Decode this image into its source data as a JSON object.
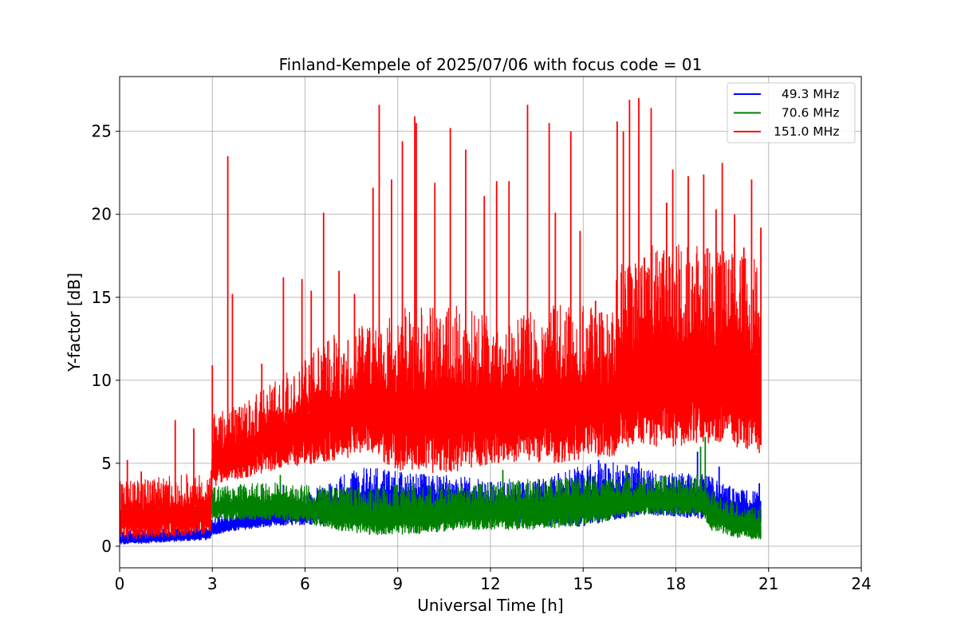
{
  "chart_data": {
    "type": "line",
    "title": "Finland-Kempele of 2025/07/06 with focus code = 01",
    "xlabel": "Universal Time [h]",
    "ylabel": "Y-factor [dB]",
    "xlim": [
      0,
      24
    ],
    "ylim": [
      -1.3,
      28.3
    ],
    "xticks": [
      0,
      3,
      6,
      9,
      12,
      15,
      18,
      21,
      24
    ],
    "yticks": [
      0,
      5,
      10,
      15,
      20,
      25
    ],
    "xtick_labels": [
      "0",
      "3",
      "6",
      "9",
      "12",
      "15",
      "18",
      "21",
      "24"
    ],
    "ytick_labels": [
      "0",
      "5",
      "10",
      "15",
      "20",
      "25"
    ],
    "grid": true,
    "legend_position": "top-right",
    "data_end_hour": 20.75,
    "series": [
      {
        "name": "  49.3 MHz",
        "color": "#0000ff",
        "x": [
          0,
          1,
          2,
          2.9,
          3.0,
          4,
          5,
          6,
          7,
          8,
          9,
          10,
          11,
          12,
          13,
          14,
          15,
          16,
          17,
          18,
          19,
          20,
          20.75
        ],
        "low": [
          0.1,
          0.2,
          0.3,
          0.4,
          0.7,
          1.0,
          1.2,
          1.3,
          1.4,
          1.5,
          1.6,
          1.6,
          1.5,
          1.5,
          1.4,
          1.2,
          1.2,
          1.6,
          1.9,
          1.8,
          1.6,
          1.3,
          1.3
        ],
        "high": [
          0.7,
          0.8,
          0.9,
          1.0,
          1.4,
          1.8,
          2.2,
          2.6,
          3.3,
          3.8,
          3.6,
          3.5,
          3.4,
          3.2,
          3.1,
          3.3,
          3.8,
          4.0,
          3.8,
          3.6,
          3.5,
          2.8,
          2.7
        ],
        "peaks": [
          [
            5.3,
            3.7
          ],
          [
            8.3,
            4.2
          ],
          [
            9.5,
            4.2
          ],
          [
            14.2,
            4.4
          ],
          [
            15.5,
            5.2
          ],
          [
            16.8,
            5.1
          ],
          [
            18.7,
            5.7
          ],
          [
            19.4,
            4.8
          ],
          [
            20.7,
            3.8
          ]
        ]
      },
      {
        "name": "  70.6 MHz",
        "color": "#008000",
        "x": [
          3.0,
          4,
          5,
          6,
          7,
          8,
          9,
          10,
          11,
          12,
          13,
          14,
          15,
          16,
          17,
          18,
          18.9,
          19.1,
          20,
          20.75
        ],
        "low": [
          1.6,
          1.6,
          1.6,
          1.4,
          1.0,
          0.7,
          0.7,
          0.8,
          1.0,
          1.0,
          1.0,
          1.1,
          1.2,
          1.6,
          1.9,
          1.9,
          1.9,
          1.0,
          0.5,
          0.4
        ],
        "high": [
          3.0,
          3.1,
          3.2,
          3.0,
          2.8,
          2.7,
          2.8,
          2.8,
          2.9,
          3.0,
          3.2,
          3.2,
          3.3,
          3.4,
          3.5,
          3.5,
          3.6,
          2.6,
          2.0,
          1.8
        ],
        "peaks": [
          [
            4.0,
            3.6
          ],
          [
            5.2,
            4.3
          ],
          [
            7.5,
            3.4
          ],
          [
            9.5,
            3.9
          ],
          [
            12.4,
            4.6
          ],
          [
            16.4,
            4.5
          ],
          [
            18.8,
            6.0
          ],
          [
            18.95,
            6.6
          ]
        ]
      },
      {
        "name": "151.0 MHz",
        "color": "#ff0000",
        "x": [
          0,
          1,
          2,
          2.95,
          3.0,
          4,
          5,
          6,
          7,
          8,
          9,
          10,
          11,
          12,
          13,
          14,
          15,
          16,
          16.1,
          17,
          18,
          19,
          20,
          20.75
        ],
        "low": [
          0.3,
          0.5,
          0.6,
          0.7,
          3.6,
          4.1,
          4.6,
          4.9,
          5.2,
          5.6,
          4.6,
          4.4,
          4.5,
          5.0,
          5.1,
          5.0,
          5.2,
          5.4,
          6.0,
          6.0,
          6.0,
          6.2,
          5.8,
          5.6
        ],
        "high": [
          2.8,
          3.0,
          3.2,
          3.3,
          6.6,
          7.2,
          8.3,
          9.3,
          10.5,
          11.0,
          11.4,
          11.3,
          11.4,
          11.1,
          11.3,
          11.6,
          11.6,
          11.8,
          13.6,
          14.3,
          14.6,
          14.4,
          14.0,
          14.2
        ],
        "peaks": [
          [
            0.25,
            5.2
          ],
          [
            0.7,
            4.5
          ],
          [
            1.8,
            7.6
          ],
          [
            2.4,
            7.1
          ],
          [
            3.0,
            10.9
          ],
          [
            3.5,
            23.5
          ],
          [
            3.65,
            15.2
          ],
          [
            4.6,
            11.0
          ],
          [
            5.3,
            16.2
          ],
          [
            5.9,
            16.1
          ],
          [
            6.2,
            15.4
          ],
          [
            6.6,
            20.1
          ],
          [
            7.1,
            16.6
          ],
          [
            7.6,
            15.2
          ],
          [
            8.2,
            21.6
          ],
          [
            8.4,
            26.6
          ],
          [
            8.8,
            22.1
          ],
          [
            9.15,
            24.4
          ],
          [
            9.55,
            25.9
          ],
          [
            9.6,
            25.5
          ],
          [
            10.2,
            21.9
          ],
          [
            10.7,
            25.2
          ],
          [
            11.2,
            23.9
          ],
          [
            11.8,
            21.1
          ],
          [
            12.2,
            22.0
          ],
          [
            12.6,
            22.0
          ],
          [
            13.2,
            26.6
          ],
          [
            13.9,
            25.5
          ],
          [
            14.1,
            20.1
          ],
          [
            14.6,
            25.0
          ],
          [
            14.9,
            19.0
          ],
          [
            15.4,
            14.8
          ],
          [
            16.1,
            25.6
          ],
          [
            16.3,
            25.0
          ],
          [
            16.5,
            26.9
          ],
          [
            16.8,
            27.0
          ],
          [
            17.2,
            26.4
          ],
          [
            17.7,
            20.7
          ],
          [
            17.9,
            22.7
          ],
          [
            18.4,
            22.3
          ],
          [
            18.9,
            22.4
          ],
          [
            19.3,
            20.3
          ],
          [
            19.5,
            23.1
          ],
          [
            19.9,
            20.0
          ],
          [
            20.2,
            18.0
          ],
          [
            20.45,
            22.1
          ],
          [
            20.75,
            19.2
          ]
        ]
      }
    ]
  }
}
